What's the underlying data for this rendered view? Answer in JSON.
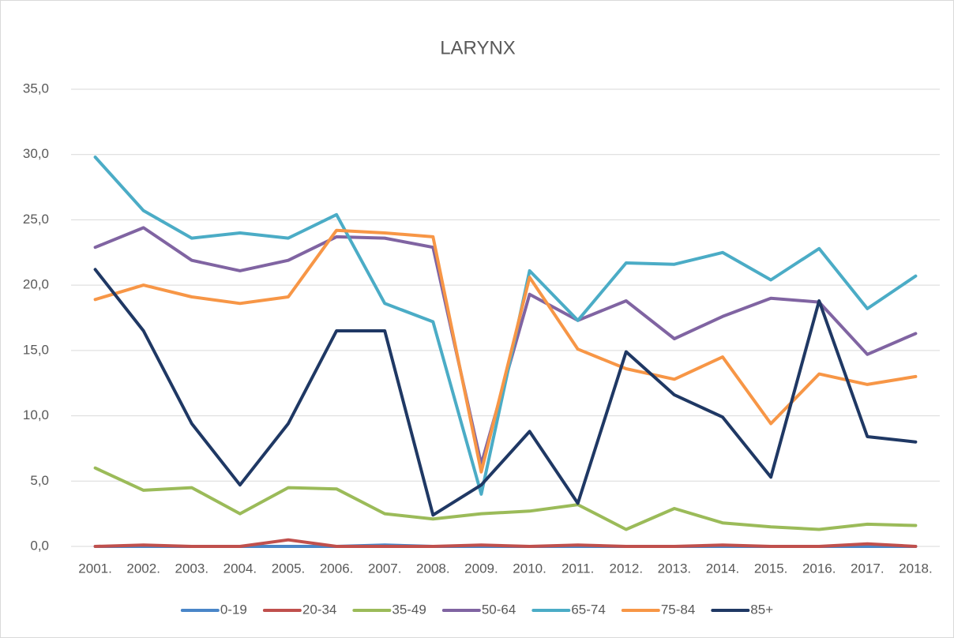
{
  "chart_data": {
    "type": "line",
    "title": "LARYNX",
    "categories": [
      "2001.",
      "2002.",
      "2003.",
      "2004.",
      "2005.",
      "2006.",
      "2007.",
      "2008.",
      "2009.",
      "2010.",
      "2011.",
      "2012.",
      "2013.",
      "2014.",
      "2015.",
      "2016.",
      "2017.",
      "2018."
    ],
    "ylim": [
      0,
      35
    ],
    "yticks": [
      {
        "value": 0,
        "label": "0,0"
      },
      {
        "value": 5,
        "label": "5,0"
      },
      {
        "value": 10,
        "label": "10,0"
      },
      {
        "value": 15,
        "label": "15,0"
      },
      {
        "value": 20,
        "label": "20,0"
      },
      {
        "value": 25,
        "label": "25,0"
      },
      {
        "value": 30,
        "label": "30,0"
      },
      {
        "value": 35,
        "label": "35,0"
      }
    ],
    "grid": true,
    "legend": "bottom",
    "series": [
      {
        "name": "0-19",
        "color": "#4a86c8",
        "values": [
          0,
          0,
          0,
          0,
          0,
          0,
          0.1,
          0,
          0,
          0,
          0,
          0,
          0,
          0,
          0,
          0,
          0,
          0
        ]
      },
      {
        "name": "20-34",
        "color": "#c0504d",
        "values": [
          0,
          0.1,
          0,
          0,
          0.5,
          0,
          0,
          0,
          0.1,
          0,
          0.1,
          0,
          0,
          0.1,
          0,
          0,
          0.2,
          0
        ]
      },
      {
        "name": "35-49",
        "color": "#9bbb59",
        "values": [
          6.0,
          4.3,
          4.5,
          2.5,
          4.5,
          4.4,
          2.5,
          2.1,
          2.5,
          2.7,
          3.2,
          1.3,
          2.9,
          1.8,
          1.5,
          1.3,
          1.7,
          1.6
        ]
      },
      {
        "name": "50-64",
        "color": "#8064a2",
        "values": [
          22.9,
          24.4,
          21.9,
          21.1,
          21.9,
          23.7,
          23.6,
          22.9,
          6.3,
          19.3,
          17.3,
          18.8,
          15.9,
          17.6,
          19.0,
          18.7,
          14.7,
          16.3
        ]
      },
      {
        "name": "65-74",
        "color": "#4bacc6",
        "values": [
          29.8,
          25.7,
          23.6,
          24.0,
          23.6,
          25.4,
          18.6,
          17.2,
          4.0,
          21.1,
          17.3,
          21.7,
          21.6,
          22.5,
          20.4,
          22.8,
          18.2,
          20.7
        ]
      },
      {
        "name": "75-84",
        "color": "#f79646",
        "values": [
          18.9,
          20.0,
          19.1,
          18.6,
          19.1,
          24.2,
          24.0,
          23.7,
          5.7,
          20.6,
          15.1,
          13.6,
          12.8,
          14.5,
          9.4,
          13.2,
          12.4,
          13.0
        ]
      },
      {
        "name": "85+",
        "color": "#1f3864",
        "values": [
          21.2,
          16.5,
          9.4,
          4.7,
          9.4,
          16.5,
          16.5,
          2.4,
          4.7,
          8.8,
          3.3,
          14.9,
          11.6,
          9.9,
          5.3,
          18.8,
          8.4,
          8.0
        ]
      }
    ]
  }
}
